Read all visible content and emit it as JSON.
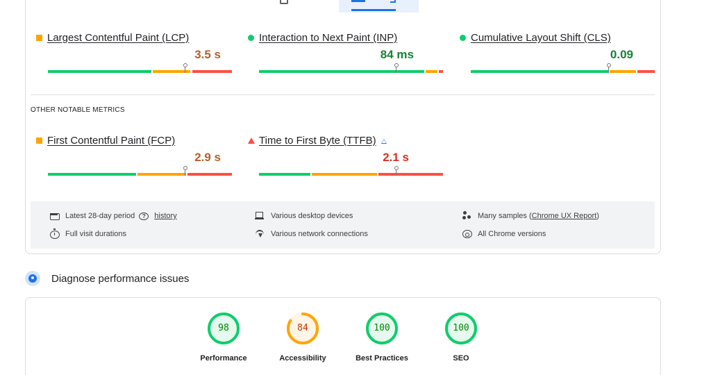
{
  "core_metrics": [
    {
      "name": "Largest Contentful Paint (LCP)",
      "value": "3.5 s",
      "rating": "average",
      "indicator": "orange-square-icon"
    },
    {
      "name": "Interaction to Next Paint (INP)",
      "value": "84 ms",
      "rating": "good",
      "indicator": "green-circle-icon"
    },
    {
      "name": "Cumulative Layout Shift (CLS)",
      "value": "0.09",
      "rating": "good",
      "indicator": "green-circle-icon"
    }
  ],
  "other_metrics_label": "OTHER NOTABLE METRICS",
  "other_metrics": [
    {
      "name": "First Contentful Paint (FCP)",
      "value": "2.9 s",
      "rating": "average",
      "indicator": "orange-square-icon"
    },
    {
      "name": "Time to First Byte (TTFB)",
      "value": "2.1 s",
      "rating": "poor",
      "indicator": "red-triangle-icon",
      "experimental_icon": "flask-icon"
    }
  ],
  "info": {
    "period": "Latest 28-day period",
    "history_link": "history",
    "visit_durations": "Full visit durations",
    "devices": "Various desktop devices",
    "network": "Various network connections",
    "samples_prefix": "Many samples (",
    "samples_link": "Chrome UX Report",
    "samples_suffix": ")",
    "chrome_versions": "All Chrome versions"
  },
  "diagnose": {
    "title": "Diagnose performance issues"
  },
  "scores": [
    {
      "label": "Performance",
      "score": "98",
      "value": 98,
      "color": "#0cce6b",
      "text_color": "#008800",
      "bg": "#e6f9ee"
    },
    {
      "label": "Accessibility",
      "score": "84",
      "value": 84,
      "color": "#ffa400",
      "text_color": "#c33300",
      "bg": "#fff5e6"
    },
    {
      "label": "Best Practices",
      "score": "100",
      "value": 100,
      "color": "#0cce6b",
      "text_color": "#008800",
      "bg": "#e6f9ee"
    },
    {
      "label": "SEO",
      "score": "100",
      "value": 100,
      "color": "#0cce6b",
      "text_color": "#008800",
      "bg": "#e6f9ee"
    }
  ],
  "colors": {
    "good": "#0cce6b",
    "average": "#ffa400",
    "poor": "#ff4e42",
    "accent": "#1a73e8"
  }
}
